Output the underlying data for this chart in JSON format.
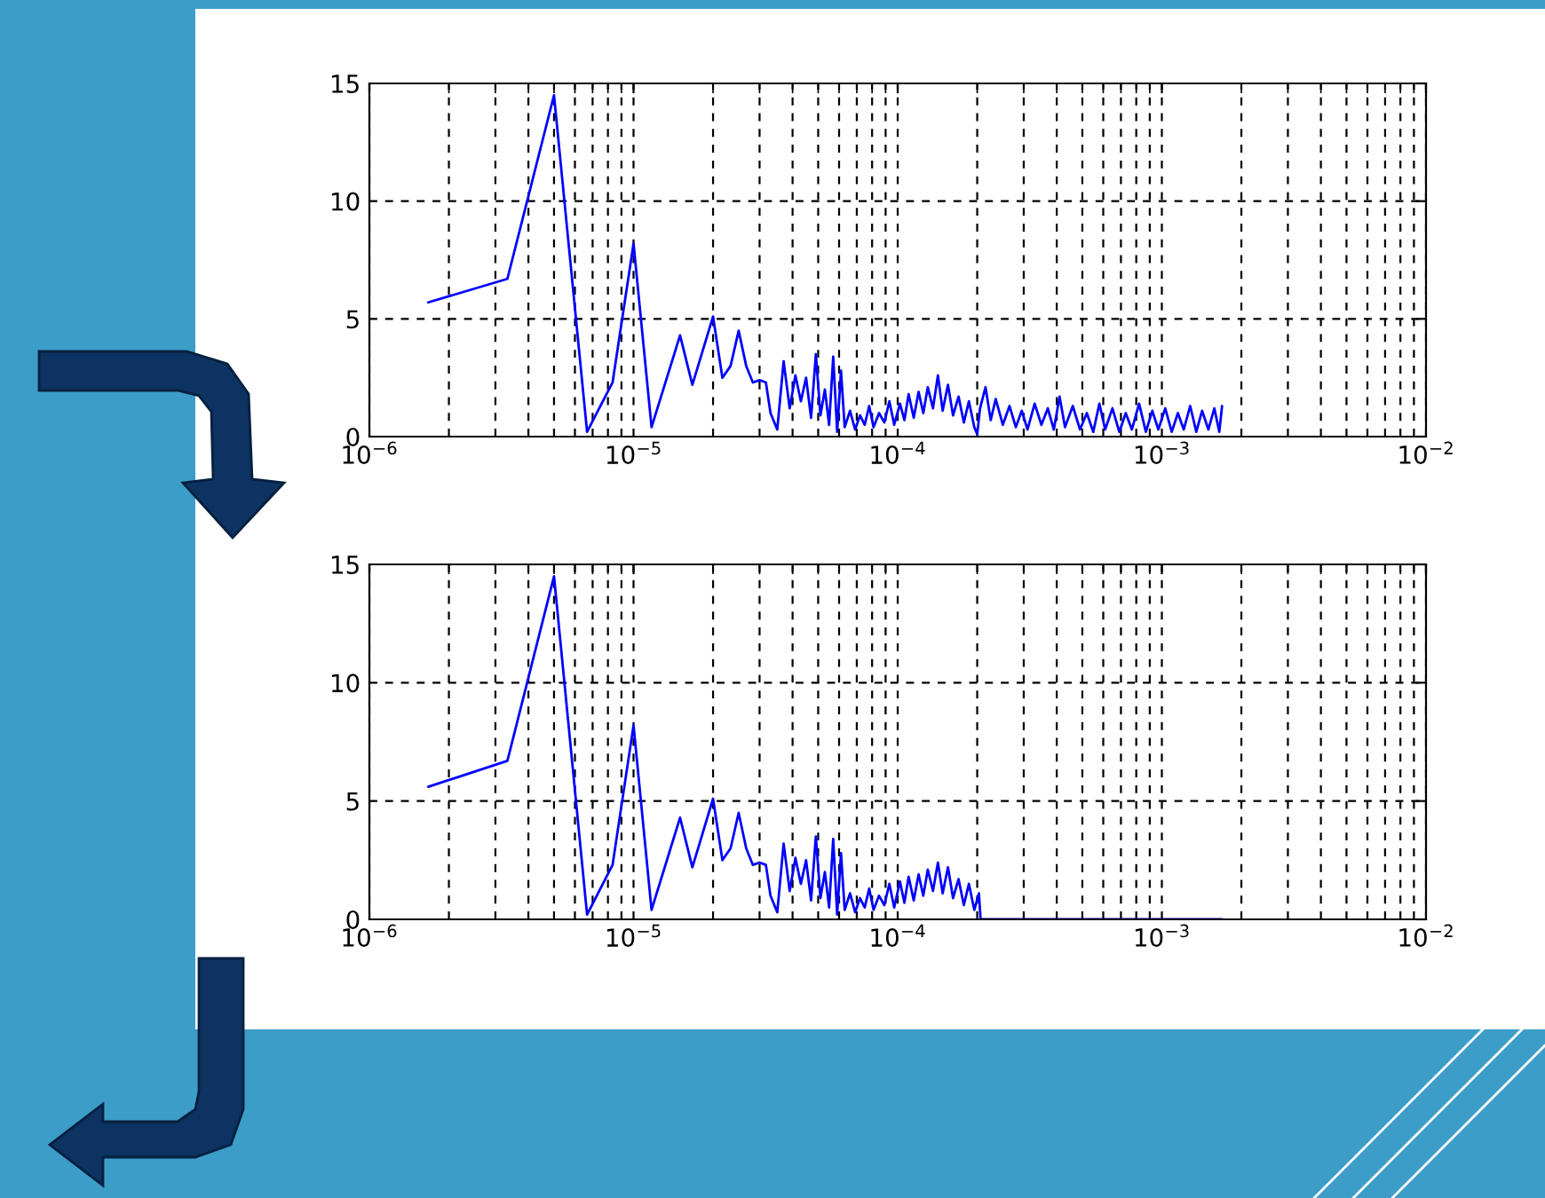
{
  "chart_data": [
    {
      "type": "line",
      "color": "#0000ff",
      "log": "x",
      "grid": true,
      "line_style": "solid",
      "marker": "none",
      "xlim": [
        1e-06,
        0.01
      ],
      "xticks": [
        {
          "value": 1e-06,
          "label": "10$^{−6}$"
        },
        {
          "value": 1e-05,
          "label": "10$^{−5}$"
        },
        {
          "value": 0.0001,
          "label": "10$^{−4}$"
        },
        {
          "value": 0.001,
          "label": "10$^{−3}$"
        },
        {
          "value": 0.01,
          "label": "10$^{−2}$"
        }
      ],
      "ylim": [
        0,
        15
      ],
      "yticks": [
        0,
        5,
        10,
        15
      ],
      "x": [
        1.67e-06,
        3.33e-06,
        5e-06,
        6.67e-06,
        8.33e-06,
        1e-05,
        1.17e-05,
        1.5e-05,
        1.67e-05,
        2e-05,
        2.17e-05,
        2.33e-05,
        2.5e-05,
        2.67e-05,
        2.83e-05,
        3e-05,
        3.17e-05,
        3.3e-05,
        3.5e-05,
        3.7e-05,
        3.9e-05,
        4.1e-05,
        4.3e-05,
        4.5e-05,
        4.7e-05,
        4.9e-05,
        5.1e-05,
        5.3e-05,
        5.5e-05,
        5.7e-05,
        5.9e-05,
        6.1e-05,
        6.3e-05,
        6.6e-05,
        6.9e-05,
        7.2e-05,
        7.5e-05,
        7.8e-05,
        8.1e-05,
        8.5e-05,
        8.9e-05,
        9.3e-05,
        9.7e-05,
        0.000102,
        0.000106,
        0.00011,
        0.000115,
        0.00012,
        0.000125,
        0.00013,
        0.000136,
        0.000142,
        0.000148,
        0.000155,
        0.000162,
        0.00017,
        0.000178,
        0.000186,
        0.000195,
        0.0002,
        0.000205,
        0.000215,
        0.000225,
        0.000235,
        0.00025,
        0.000265,
        0.00028,
        0.000295,
        0.00031,
        0.00033,
        0.00035,
        0.00037,
        0.00039,
        0.00041,
        0.00043,
        0.00046,
        0.00049,
        0.00052,
        0.00055,
        0.00058,
        0.00061,
        0.00065,
        0.00069,
        0.00073,
        0.00077,
        0.00082,
        0.00087,
        0.00092,
        0.00097,
        0.00103,
        0.00109,
        0.00115,
        0.00121,
        0.00128,
        0.00135,
        0.00142,
        0.0015,
        0.00158,
        0.00165,
        0.00169
      ],
      "values": [
        5.7,
        6.7,
        14.5,
        0.2,
        2.3,
        8.2,
        0.4,
        4.3,
        2.2,
        5.1,
        2.5,
        3.0,
        4.5,
        3.0,
        2.3,
        2.4,
        2.3,
        1.0,
        0.3,
        3.2,
        1.2,
        2.6,
        1.5,
        2.5,
        0.8,
        3.5,
        0.9,
        2.0,
        0.5,
        3.4,
        0.2,
        2.8,
        0.4,
        1.1,
        0.3,
        0.9,
        0.5,
        1.3,
        0.4,
        1.0,
        0.6,
        1.5,
        0.5,
        1.4,
        0.7,
        1.8,
        0.8,
        1.9,
        1.0,
        2.1,
        1.2,
        2.6,
        1.1,
        2.2,
        0.9,
        1.7,
        0.6,
        1.5,
        0.4,
        0.1,
        1.2,
        2.1,
        0.7,
        1.6,
        0.5,
        1.3,
        0.4,
        1.1,
        0.3,
        1.4,
        0.5,
        1.2,
        0.3,
        1.7,
        0.4,
        1.3,
        0.3,
        1.0,
        0.2,
        1.4,
        0.3,
        1.2,
        0.2,
        1.0,
        0.3,
        1.4,
        0.2,
        1.1,
        0.3,
        1.2,
        0.2,
        1.0,
        0.3,
        1.3,
        0.2,
        1.1,
        0.3,
        1.2,
        0.2,
        1.3
      ]
    },
    {
      "type": "line",
      "color": "#0000ff",
      "log": "x",
      "grid": true,
      "line_style": "solid",
      "marker": "none",
      "xlim": [
        1e-06,
        0.01
      ],
      "xticks": [
        {
          "value": 1e-06,
          "label": "10$^{−6}$"
        },
        {
          "value": 1e-05,
          "label": "10$^{−5}$"
        },
        {
          "value": 0.0001,
          "label": "10$^{−4}$"
        },
        {
          "value": 0.001,
          "label": "10$^{−3}$"
        },
        {
          "value": 0.01,
          "label": "10$^{−2}$"
        }
      ],
      "ylim": [
        0,
        15
      ],
      "yticks": [
        0,
        5,
        10,
        15
      ],
      "x": [
        1.67e-06,
        3.33e-06,
        5e-06,
        6.67e-06,
        8.33e-06,
        1e-05,
        1.17e-05,
        1.5e-05,
        1.67e-05,
        2e-05,
        2.17e-05,
        2.33e-05,
        2.5e-05,
        2.67e-05,
        2.83e-05,
        3e-05,
        3.17e-05,
        3.3e-05,
        3.5e-05,
        3.7e-05,
        3.9e-05,
        4.1e-05,
        4.3e-05,
        4.5e-05,
        4.7e-05,
        4.9e-05,
        5.1e-05,
        5.3e-05,
        5.5e-05,
        5.7e-05,
        5.9e-05,
        6.1e-05,
        6.3e-05,
        6.6e-05,
        6.9e-05,
        7.2e-05,
        7.5e-05,
        7.8e-05,
        8.1e-05,
        8.5e-05,
        8.9e-05,
        9.3e-05,
        9.7e-05,
        0.000102,
        0.000106,
        0.00011,
        0.000115,
        0.00012,
        0.000125,
        0.00013,
        0.000136,
        0.000142,
        0.000148,
        0.000155,
        0.000162,
        0.00017,
        0.000178,
        0.000186,
        0.000195,
        0.000203,
        0.000206,
        0.00169
      ],
      "values": [
        5.6,
        6.7,
        14.5,
        0.2,
        2.3,
        8.2,
        0.4,
        4.3,
        2.2,
        5.1,
        2.5,
        3.0,
        4.5,
        3.0,
        2.3,
        2.4,
        2.3,
        1.0,
        0.3,
        3.2,
        1.2,
        2.6,
        1.5,
        2.5,
        0.8,
        3.5,
        0.9,
        2.0,
        0.5,
        3.4,
        0.2,
        2.8,
        0.4,
        1.1,
        0.3,
        0.9,
        0.5,
        1.3,
        0.4,
        1.0,
        0.6,
        1.5,
        0.5,
        1.6,
        0.7,
        1.8,
        0.8,
        1.9,
        1.0,
        2.1,
        1.2,
        2.4,
        1.1,
        2.2,
        0.9,
        1.7,
        0.6,
        1.5,
        0.4,
        1.1,
        0.0,
        0.0
      ]
    }
  ]
}
